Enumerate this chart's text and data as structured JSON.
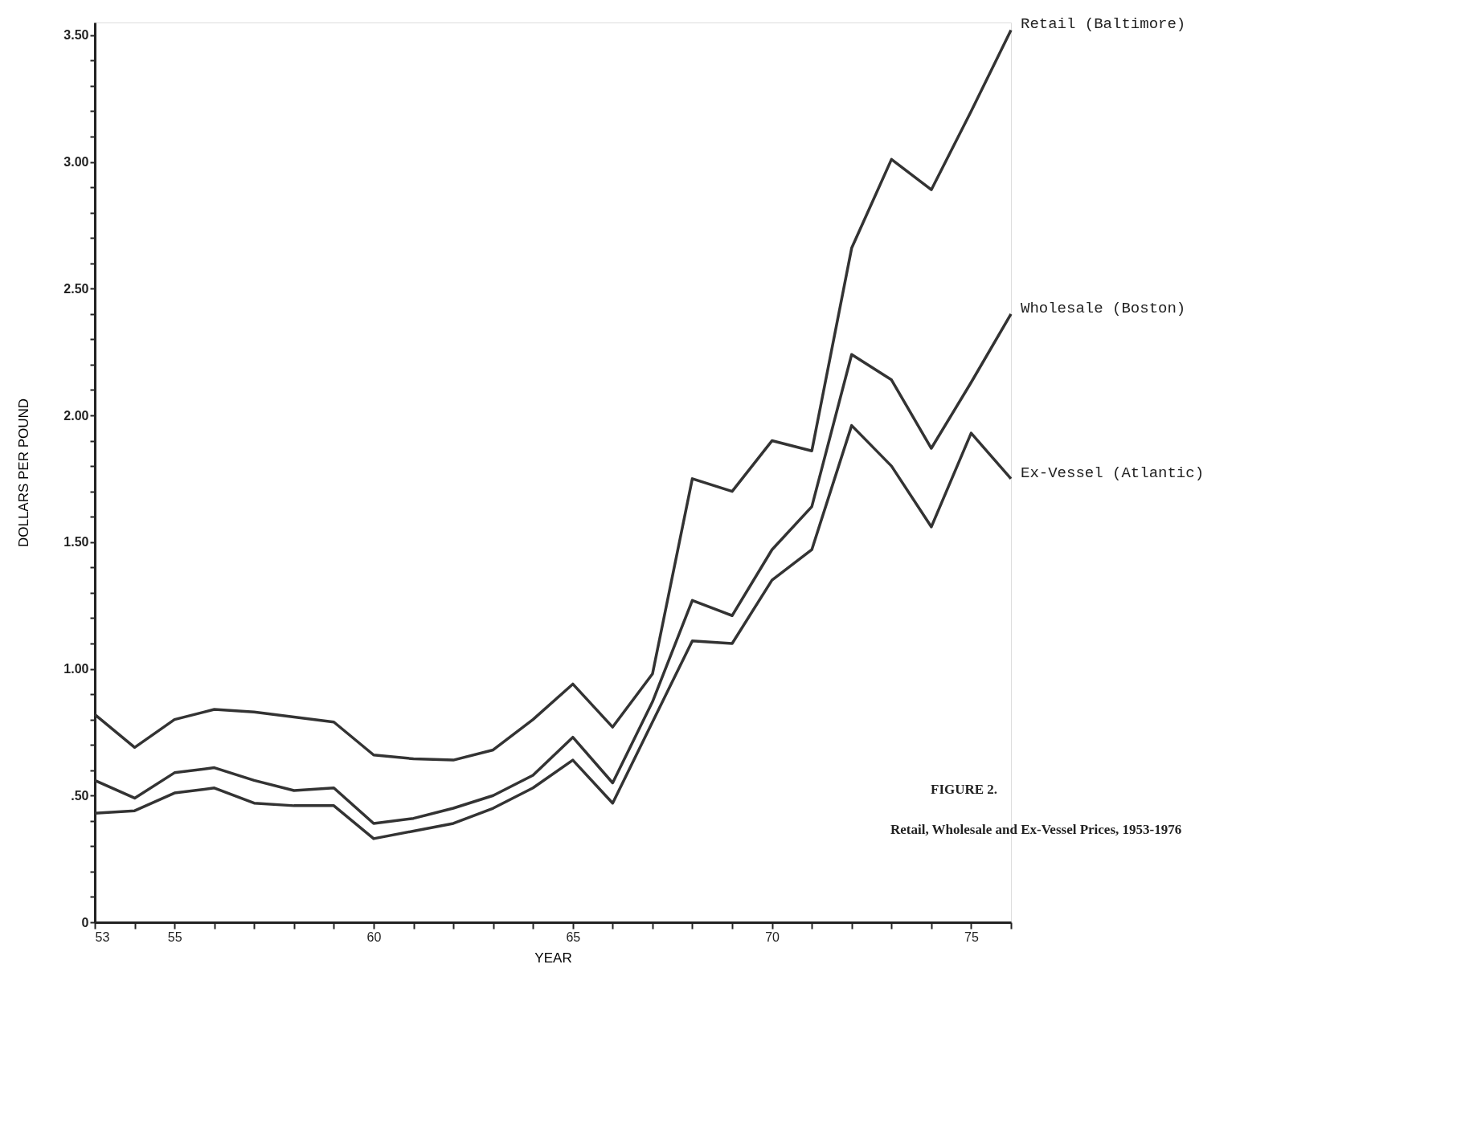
{
  "chart_data": {
    "type": "line",
    "xlabel": "YEAR",
    "ylabel": "DOLLARS PER POUND",
    "x": [
      53,
      54,
      55,
      56,
      57,
      58,
      59,
      60,
      61,
      62,
      63,
      64,
      65,
      66,
      67,
      68,
      69,
      70,
      71,
      72,
      73,
      74,
      75,
      76
    ],
    "series": [
      {
        "name": "Retail (Baltimore)",
        "color": "#333333",
        "values": [
          0.82,
          0.69,
          0.8,
          0.84,
          0.83,
          0.81,
          0.79,
          0.66,
          0.645,
          0.64,
          0.68,
          0.8,
          0.94,
          0.77,
          0.98,
          1.75,
          1.7,
          1.9,
          1.86,
          2.66,
          3.01,
          2.89,
          3.2,
          3.52
        ]
      },
      {
        "name": "Wholesale (Boston)",
        "color": "#333333",
        "values": [
          0.56,
          0.49,
          0.59,
          0.61,
          0.56,
          0.52,
          0.53,
          0.39,
          0.41,
          0.45,
          0.5,
          0.58,
          0.73,
          0.55,
          0.87,
          1.27,
          1.21,
          1.47,
          1.64,
          2.24,
          2.14,
          1.87,
          2.13,
          2.4
        ]
      },
      {
        "name": "Ex-Vessel (Atlantic)",
        "color": "#333333",
        "values": [
          0.43,
          0.44,
          0.51,
          0.53,
          0.47,
          0.46,
          0.46,
          0.33,
          0.36,
          0.39,
          0.45,
          0.53,
          0.64,
          0.47,
          0.79,
          1.11,
          1.1,
          1.35,
          1.47,
          1.96,
          1.8,
          1.56,
          1.93,
          1.75
        ]
      }
    ],
    "xlim": [
      53,
      76
    ],
    "xticks": [
      {
        "value": 53,
        "label": "53"
      },
      {
        "value": 54,
        "label": null
      },
      {
        "value": 55,
        "label": "55"
      },
      {
        "value": 56,
        "label": null
      },
      {
        "value": 57,
        "label": null
      },
      {
        "value": 58,
        "label": null
      },
      {
        "value": 59,
        "label": null
      },
      60,
      {
        "value": 61,
        "label": null
      },
      {
        "value": 62,
        "label": null
      },
      {
        "value": 63,
        "label": null
      },
      {
        "value": 64,
        "label": null
      },
      65,
      {
        "value": 66,
        "label": null
      },
      {
        "value": 67,
        "label": null
      },
      {
        "value": 68,
        "label": null
      },
      {
        "value": 69,
        "label": null
      },
      70,
      {
        "value": 71,
        "label": null
      },
      {
        "value": 72,
        "label": null
      },
      {
        "value": 73,
        "label": null
      },
      {
        "value": 74,
        "label": null
      },
      75,
      {
        "value": 76,
        "label": null
      }
    ],
    "ylim": [
      0,
      3.55
    ],
    "yticks": [
      0,
      {
        "value": 0.1,
        "label": null
      },
      {
        "value": 0.2,
        "label": null
      },
      {
        "value": 0.3,
        "label": null
      },
      {
        "value": 0.4,
        "label": null
      },
      {
        "value": 0.5,
        "label": ".50"
      },
      {
        "value": 0.6,
        "label": null
      },
      {
        "value": 0.7,
        "label": null
      },
      {
        "value": 0.8,
        "label": null
      },
      {
        "value": 0.9,
        "label": null
      },
      {
        "value": 1,
        "label": "1.00"
      },
      {
        "value": 1.1,
        "label": null
      },
      {
        "value": 1.2,
        "label": null
      },
      {
        "value": 1.3,
        "label": null
      },
      {
        "value": 1.4,
        "label": null
      },
      {
        "value": 1.5,
        "label": "1.50"
      },
      {
        "value": 1.6,
        "label": null
      },
      {
        "value": 1.7,
        "label": null
      },
      {
        "value": 1.8,
        "label": null
      },
      {
        "value": 1.9,
        "label": null
      },
      {
        "value": 2,
        "label": "2.00"
      },
      {
        "value": 2.1,
        "label": null
      },
      {
        "value": 2.2,
        "label": null
      },
      {
        "value": 2.3,
        "label": null
      },
      {
        "value": 2.4,
        "label": null
      },
      {
        "value": 2.5,
        "label": "2.50"
      },
      {
        "value": 2.6,
        "label": null
      },
      {
        "value": 2.7,
        "label": null
      },
      {
        "value": 2.8,
        "label": null
      },
      {
        "value": 2.9,
        "label": null
      },
      {
        "value": 3,
        "label": "3.00"
      },
      {
        "value": 3.1,
        "label": null
      },
      {
        "value": 3.2,
        "label": null
      },
      {
        "value": 3.3,
        "label": null
      },
      {
        "value": 3.4,
        "label": null
      },
      {
        "value": 3.5,
        "label": "3.50"
      }
    ],
    "grid": false,
    "legend": false,
    "marker": "none",
    "line_style": "solid",
    "annotations": [
      "FIGURE 2.",
      "Retail, Wholesale and Ex-Vessel Prices, 1953-1976"
    ]
  }
}
